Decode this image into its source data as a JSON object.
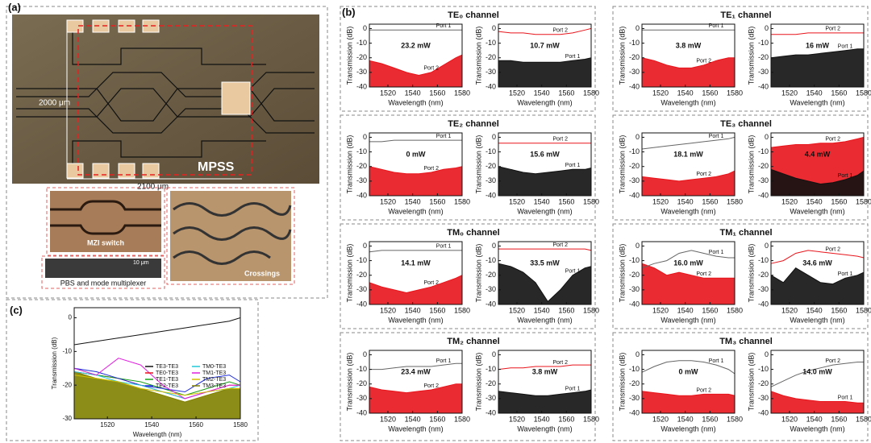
{
  "panel_a": {
    "label": "(a)",
    "scale_v": "2000 μm",
    "scale_h": "2100 μm",
    "chip": "MPSS",
    "inset_mzi": "MZI switch",
    "inset_scale": "10 μm",
    "inset_pbs": "PBS and mode multiplexer",
    "inset_crossings": "Crossings"
  },
  "panel_b": {
    "label": "(b)",
    "xlabel": "Wavelength (nm)",
    "ylabel": "Transmission (dB)",
    "x": [
      1505,
      1515,
      1525,
      1535,
      1545,
      1555,
      1565,
      1575,
      1580
    ],
    "xlim": [
      1505,
      1580
    ],
    "xticks": [
      1520,
      1540,
      1560,
      1580
    ],
    "ylim": [
      -40,
      3
    ],
    "yticks": [
      -40,
      -30,
      -20,
      -10,
      0
    ],
    "channels": [
      {
        "title": "TE₀ channel",
        "plots": [
          {
            "power": "23.2 mW",
            "traces": [
              {
                "name": "Port 2",
                "color": "#e8141b",
                "fill": true,
                "values": [
                  -22,
                  -24,
                  -27,
                  -30,
                  -32,
                  -30,
                  -25,
                  -20,
                  -18
                ]
              },
              {
                "name": "Port 1",
                "color": "#666666",
                "fill": false,
                "values": [
                  -1,
                  -1,
                  -1,
                  -1,
                  -1,
                  -1,
                  -1,
                  -1,
                  -1
                ]
              }
            ]
          },
          {
            "power": "10.7 mW",
            "traces": [
              {
                "name": "Port 2",
                "color": "#e8141b",
                "fill": false,
                "values": [
                  -2,
                  -3,
                  -3,
                  -4,
                  -4,
                  -4,
                  -3,
                  -1,
                  0
                ]
              },
              {
                "name": "Port 1",
                "color": "#111111",
                "fill": true,
                "values": [
                  -22,
                  -22,
                  -23,
                  -23,
                  -23,
                  -23,
                  -22,
                  -21,
                  -20
                ]
              }
            ]
          }
        ]
      },
      {
        "title": "TE₁ channel",
        "plots": [
          {
            "power": "3.8 mW",
            "traces": [
              {
                "name": "Port 2",
                "color": "#e8141b",
                "fill": true,
                "values": [
                  -20,
                  -22,
                  -25,
                  -27,
                  -27,
                  -25,
                  -22,
                  -20,
                  -20
                ]
              },
              {
                "name": "Port 1",
                "color": "#666666",
                "fill": false,
                "values": [
                  -1,
                  -1,
                  -1,
                  -1,
                  -1,
                  -1,
                  -1,
                  -1,
                  -1
                ]
              }
            ]
          },
          {
            "power": "16 mW",
            "traces": [
              {
                "name": "Port 2",
                "color": "#e8141b",
                "fill": false,
                "values": [
                  -4,
                  -4,
                  -4,
                  -3,
                  -3,
                  -3,
                  -3,
                  -3,
                  -3
                ]
              },
              {
                "name": "Port 1",
                "color": "#111111",
                "fill": true,
                "values": [
                  -20,
                  -19,
                  -18,
                  -18,
                  -17,
                  -16,
                  -15,
                  -14,
                  -14
                ]
              }
            ]
          }
        ]
      },
      {
        "title": "TE₂ channel",
        "plots": [
          {
            "power": "0 mW",
            "traces": [
              {
                "name": "Port 2",
                "color": "#e8141b",
                "fill": true,
                "values": [
                  -20,
                  -22,
                  -24,
                  -25,
                  -25,
                  -24,
                  -22,
                  -21,
                  -20
                ]
              },
              {
                "name": "Port 1",
                "color": "#666666",
                "fill": false,
                "values": [
                  -3,
                  -3,
                  -2,
                  -2,
                  -2,
                  -2,
                  -2,
                  -2,
                  -2
                ]
              }
            ]
          },
          {
            "power": "15.6 mW",
            "traces": [
              {
                "name": "Port 2",
                "color": "#e8141b",
                "fill": false,
                "values": [
                  -4,
                  -4,
                  -4,
                  -4,
                  -4,
                  -4,
                  -4,
                  -4,
                  -4
                ]
              },
              {
                "name": "Port 1",
                "color": "#111111",
                "fill": true,
                "values": [
                  -20,
                  -22,
                  -24,
                  -25,
                  -24,
                  -23,
                  -22,
                  -22,
                  -21
                ]
              }
            ]
          }
        ]
      },
      {
        "title": "TE₃ channel",
        "plots": [
          {
            "power": "18.1 mW",
            "traces": [
              {
                "name": "Port 2",
                "color": "#e8141b",
                "fill": true,
                "values": [
                  -27,
                  -28,
                  -29,
                  -30,
                  -29,
                  -28,
                  -27,
                  -25,
                  -23
                ]
              },
              {
                "name": "Port 1",
                "color": "#666666",
                "fill": false,
                "values": [
                  -8,
                  -7,
                  -6,
                  -5,
                  -4,
                  -3,
                  -2,
                  -1,
                  0
                ]
              }
            ]
          },
          {
            "power": "4.4 mW",
            "traces": [
              {
                "name": "Port 2",
                "color": "#e8141b",
                "fill": true,
                "values": [
                  -7,
                  -6,
                  -5,
                  -5,
                  -4,
                  -4,
                  -3,
                  -1,
                  0
                ]
              },
              {
                "name": "Port 1",
                "color": "#111111",
                "fill": true,
                "values": [
                  -22,
                  -25,
                  -28,
                  -30,
                  -32,
                  -31,
                  -29,
                  -26,
                  -23
                ]
              }
            ]
          }
        ]
      },
      {
        "title": "TM₀ channel",
        "plots": [
          {
            "power": "14.1 mW",
            "traces": [
              {
                "name": "Port 2",
                "color": "#e8141b",
                "fill": true,
                "values": [
                  -25,
                  -28,
                  -30,
                  -32,
                  -30,
                  -28,
                  -25,
                  -22,
                  -20
                ]
              },
              {
                "name": "Port 1",
                "color": "#666666",
                "fill": false,
                "values": [
                  -4,
                  -3,
                  -3,
                  -3,
                  -3,
                  -3,
                  -3,
                  -3,
                  -3
                ]
              }
            ]
          },
          {
            "power": "33.5 mW",
            "traces": [
              {
                "name": "Port 2",
                "color": "#e8141b",
                "fill": false,
                "values": [
                  -2,
                  -2,
                  -2,
                  -2,
                  -2,
                  -2,
                  -2,
                  -2,
                  -3
                ]
              },
              {
                "name": "Port 1",
                "color": "#111111",
                "fill": true,
                "values": [
                  -12,
                  -14,
                  -18,
                  -25,
                  -38,
                  -30,
                  -20,
                  -15,
                  -14
                ]
              }
            ]
          }
        ]
      },
      {
        "title": "TM₁ channel",
        "plots": [
          {
            "power": "16.0 mW",
            "traces": [
              {
                "name": "Port 2",
                "color": "#e8141b",
                "fill": true,
                "values": [
                  -12,
                  -15,
                  -20,
                  -18,
                  -20,
                  -22,
                  -22,
                  -22,
                  -22
                ]
              },
              {
                "name": "Port 1",
                "color": "#666666",
                "fill": false,
                "values": [
                  -15,
                  -12,
                  -10,
                  -5,
                  -3,
                  -5,
                  -7,
                  -8,
                  -8
                ]
              }
            ]
          },
          {
            "power": "34.6 mW",
            "traces": [
              {
                "name": "Port 2",
                "color": "#e8141b",
                "fill": false,
                "values": [
                  -12,
                  -10,
                  -5,
                  -3,
                  -4,
                  -5,
                  -6,
                  -7,
                  -8
                ]
              },
              {
                "name": "Port 1",
                "color": "#111111",
                "fill": true,
                "values": [
                  -20,
                  -25,
                  -15,
                  -20,
                  -25,
                  -26,
                  -22,
                  -20,
                  -18
                ]
              }
            ]
          }
        ]
      },
      {
        "title": "TM₂ channel",
        "plots": [
          {
            "power": "23.4 mW",
            "traces": [
              {
                "name": "Port 2",
                "color": "#e8141b",
                "fill": true,
                "values": [
                  -22,
                  -24,
                  -25,
                  -26,
                  -25,
                  -24,
                  -22,
                  -20,
                  -20
                ]
              },
              {
                "name": "Port 1",
                "color": "#666666",
                "fill": false,
                "values": [
                  -10,
                  -10,
                  -9,
                  -8,
                  -8,
                  -8,
                  -7,
                  -6,
                  -6
                ]
              }
            ]
          },
          {
            "power": "3.8 mW",
            "traces": [
              {
                "name": "Port 2",
                "color": "#e8141b",
                "fill": false,
                "values": [
                  -10,
                  -9,
                  -9,
                  -8,
                  -8,
                  -8,
                  -7,
                  -7,
                  -7
                ]
              },
              {
                "name": "Port 1",
                "color": "#111111",
                "fill": true,
                "values": [
                  -25,
                  -26,
                  -27,
                  -28,
                  -28,
                  -27,
                  -26,
                  -25,
                  -24
                ]
              }
            ]
          }
        ]
      },
      {
        "title": "TM₃ channel",
        "plots": [
          {
            "power": "0 mW",
            "traces": [
              {
                "name": "Port 2",
                "color": "#e8141b",
                "fill": true,
                "values": [
                  -25,
                  -26,
                  -27,
                  -28,
                  -28,
                  -27,
                  -27,
                  -27,
                  -28
                ]
              },
              {
                "name": "Port 1",
                "color": "#666666",
                "fill": false,
                "values": [
                  -12,
                  -8,
                  -5,
                  -4,
                  -4,
                  -5,
                  -7,
                  -10,
                  -13
                ]
              }
            ]
          },
          {
            "power": "14.0 mW",
            "traces": [
              {
                "name": "Port 2",
                "color": "#666666",
                "fill": false,
                "values": [
                  -22,
                  -18,
                  -14,
                  -11,
                  -9,
                  -7,
                  -6,
                  -5,
                  -5
                ]
              },
              {
                "name": "Port 1",
                "color": "#e8141b",
                "fill": true,
                "values": [
                  -25,
                  -28,
                  -30,
                  -31,
                  -32,
                  -32,
                  -32,
                  -33,
                  -33
                ]
              }
            ]
          }
        ]
      }
    ]
  },
  "panel_c": {
    "label": "(c)",
    "xlabel": "Wavelength (nm)",
    "ylabel": "Transmission (dB)",
    "x": [
      1505,
      1515,
      1525,
      1535,
      1545,
      1555,
      1565,
      1575,
      1580
    ],
    "xlim": [
      1505,
      1580
    ],
    "xticks": [
      1520,
      1540,
      1560,
      1580
    ],
    "ylim": [
      -30,
      3
    ],
    "yticks": [
      -30,
      -20,
      -10,
      0
    ],
    "series": [
      {
        "name": "TM3-TE3",
        "color": "#808000",
        "fill": true,
        "values": [
          -16,
          -18,
          -19,
          -21,
          -23,
          -25,
          -23,
          -21,
          -21
        ]
      },
      {
        "name": "TE0-TE3",
        "color": "#e8141b",
        "fill": false,
        "values": [
          -16,
          -17,
          -18,
          -20,
          -22,
          -24,
          -22,
          -20,
          -20
        ]
      },
      {
        "name": "TE1-TE3",
        "color": "#18a018",
        "fill": false,
        "values": [
          -15,
          -17,
          -18,
          -19,
          -21,
          -23,
          -21,
          -19,
          -20
        ]
      },
      {
        "name": "TE2-TE3",
        "color": "#1c2bd8",
        "fill": false,
        "values": [
          -15,
          -16,
          -18,
          -20,
          -21,
          -22,
          -18,
          -17,
          -19
        ]
      },
      {
        "name": "TM0-TE3",
        "color": "#20c8d8",
        "fill": false,
        "values": [
          -16,
          -17,
          -19,
          -20,
          -22,
          -24,
          -22,
          -21,
          -20
        ]
      },
      {
        "name": "TM1-TE3",
        "color": "#e020e0",
        "fill": false,
        "values": [
          -15,
          -17,
          -12,
          -14,
          -20,
          -24,
          -22,
          -20,
          -20
        ]
      },
      {
        "name": "TM2-TE3",
        "color": "#d4c000",
        "fill": false,
        "values": [
          -17,
          -18,
          -19,
          -21,
          -22,
          -23,
          -22,
          -21,
          -21
        ]
      },
      {
        "name": "TE3-TE3",
        "color": "#111111",
        "fill": false,
        "values": [
          -8,
          -7,
          -6,
          -5,
          -4,
          -3,
          -2,
          -1,
          0
        ]
      }
    ],
    "legend_order": [
      7,
      1,
      2,
      3,
      4,
      5,
      6,
      0
    ]
  }
}
